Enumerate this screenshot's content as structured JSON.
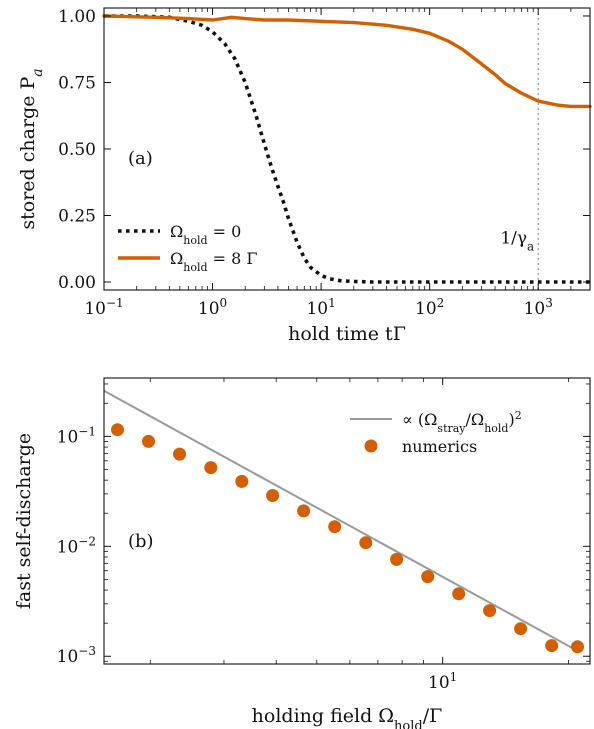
{
  "colors": {
    "orange": "#d35f00",
    "black": "#111111",
    "gray": "#999999",
    "ref_line": "#9a9a9a"
  },
  "chart_data": [
    {
      "type": "line",
      "panel_label": "(a)",
      "xlabel": "hold time tΓ",
      "ylabel": "stored charge P",
      "ylabel_sub": "a",
      "xscale": "log",
      "xlim": [
        0.1,
        3000
      ],
      "ylim": [
        -0.03,
        1.03
      ],
      "x_ticks": [
        {
          "value": 0.1,
          "base": "10",
          "exp": "−1"
        },
        {
          "value": 1,
          "base": "10",
          "exp": "0"
        },
        {
          "value": 10,
          "base": "10",
          "exp": "1"
        },
        {
          "value": 100,
          "base": "10",
          "exp": "2"
        },
        {
          "value": 1000,
          "base": "10",
          "exp": "3"
        }
      ],
      "y_ticks": [
        {
          "value": 0,
          "label": "0.00"
        },
        {
          "value": 0.25,
          "label": "0.25"
        },
        {
          "value": 0.5,
          "label": "0.50"
        },
        {
          "value": 0.75,
          "label": "0.75"
        },
        {
          "value": 1,
          "label": "1.00"
        }
      ],
      "vline": {
        "x": 1000,
        "label": "1/γ",
        "label_sub": "a"
      },
      "legend": {
        "position": "lower-left"
      },
      "series": [
        {
          "name": "Ω",
          "name_sub": "hold",
          "name_rest": " = 0",
          "style": "dotted",
          "color": "#111111",
          "x": [
            0.1,
            0.2,
            0.4,
            0.6,
            0.8,
            1.0,
            1.3,
            1.6,
            2.0,
            2.5,
            3.0,
            3.5,
            4.0,
            4.5,
            5.0,
            6.0,
            7.0,
            8.0,
            10,
            12,
            15,
            20,
            30,
            100,
            1000,
            3000
          ],
          "y": [
            1.0,
            1.0,
            0.995,
            0.98,
            0.965,
            0.94,
            0.895,
            0.84,
            0.75,
            0.63,
            0.52,
            0.43,
            0.36,
            0.3,
            0.24,
            0.15,
            0.09,
            0.055,
            0.025,
            0.012,
            0.005,
            0.002,
            0.0,
            0.0,
            0.0,
            0.0
          ]
        },
        {
          "name": "Ω",
          "name_sub": "hold",
          "name_rest": " = 8 Γ",
          "style": "solid",
          "color": "#d35f00",
          "x": [
            0.1,
            0.3,
            0.6,
            1.0,
            1.5,
            2.0,
            3.0,
            5.0,
            10,
            20,
            40,
            70,
            100,
            150,
            200,
            300,
            400,
            500,
            700,
            1000,
            1500,
            2000,
            3000
          ],
          "y": [
            1.0,
            0.995,
            0.99,
            0.985,
            0.995,
            0.99,
            0.985,
            0.985,
            0.98,
            0.975,
            0.965,
            0.95,
            0.935,
            0.905,
            0.875,
            0.82,
            0.78,
            0.745,
            0.71,
            0.68,
            0.665,
            0.66,
            0.66
          ]
        }
      ]
    },
    {
      "type": "scatter",
      "panel_label": "(b)",
      "xlabel": "holding field Ω",
      "xlabel_sub": "hold",
      "xlabel_rest": "/Γ",
      "ylabel": "fast self-discharge",
      "xscale": "log",
      "yscale": "log",
      "xlim": [
        1.55,
        22.5
      ],
      "ylim": [
        0.00085,
        0.34
      ],
      "x_ticks": [
        {
          "value": 10,
          "base": "10",
          "exp": "1"
        }
      ],
      "y_ticks": [
        {
          "value": 0.001,
          "base": "10",
          "exp": "−3"
        },
        {
          "value": 0.01,
          "base": "10",
          "exp": "−2"
        },
        {
          "value": 0.1,
          "base": "10",
          "exp": "−1"
        }
      ],
      "legend": {
        "position": "upper-right"
      },
      "series": [
        {
          "name": "∝ (Ω",
          "name_sub": "stray",
          "name_mid": "/Ω",
          "name_sub2": "hold",
          "name_rest": ")",
          "name_sup": "2",
          "style": "line",
          "color": "#9a9a9a",
          "x": [
            1.55,
            21.0
          ],
          "y": [
            0.26,
            0.00112
          ]
        },
        {
          "name": "numerics",
          "style": "marker",
          "color": "#d35f00",
          "x": [
            1.67,
            1.98,
            2.35,
            2.79,
            3.31,
            3.92,
            4.65,
            5.52,
            6.55,
            7.76,
            9.21,
            10.92,
            12.95,
            15.36,
            18.22,
            21.0
          ],
          "y": [
            0.115,
            0.09,
            0.069,
            0.052,
            0.039,
            0.029,
            0.021,
            0.0151,
            0.0108,
            0.0076,
            0.0053,
            0.0037,
            0.0026,
            0.00178,
            0.00125,
            0.00122
          ]
        }
      ]
    }
  ]
}
